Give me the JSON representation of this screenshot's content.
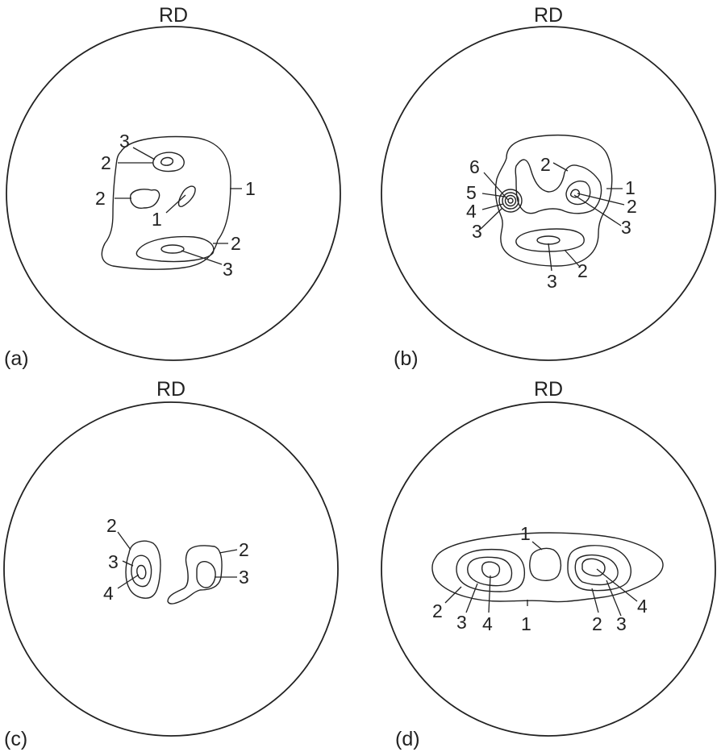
{
  "axis_label": "RD",
  "panels": [
    {
      "id": "a",
      "label": "(a)",
      "rd": "RD",
      "contour_labels": [
        "3",
        "2",
        "2",
        "1",
        "1",
        "2",
        "3"
      ]
    },
    {
      "id": "b",
      "label": "(b)",
      "rd": "RD",
      "contour_labels": [
        "2",
        "1",
        "2",
        "3",
        "6",
        "5",
        "4",
        "3",
        "3",
        "2"
      ]
    },
    {
      "id": "c",
      "label": "(c)",
      "rd": "RD",
      "contour_labels": [
        "2",
        "3",
        "4",
        "2",
        "3"
      ]
    },
    {
      "id": "d",
      "label": "(d)",
      "rd": "RD",
      "contour_labels": [
        "1",
        "2",
        "3",
        "4",
        "1",
        "2",
        "3",
        "4"
      ]
    }
  ],
  "colors": {
    "line": "#222222",
    "background": "#ffffff"
  }
}
